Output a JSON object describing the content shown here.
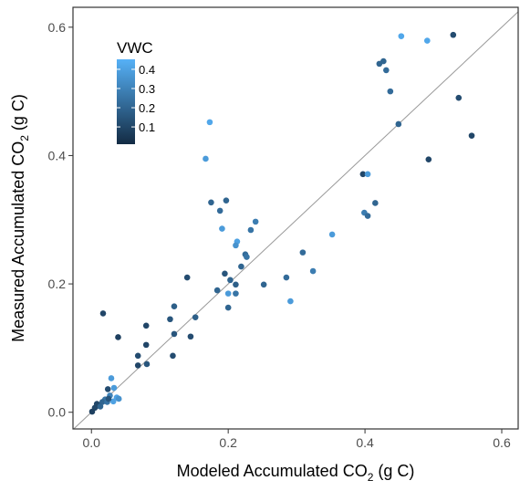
{
  "chart_data": {
    "type": "scatter",
    "xlabel": {
      "text": "Modeled Accumulated CO",
      "sub": "2",
      "suffix": " (g C)"
    },
    "ylabel": {
      "text": "Measured Accumulated  CO",
      "sub": "2",
      "suffix": " (g C)"
    },
    "xlim": [
      -0.027,
      0.624
    ],
    "ylim": [
      -0.026,
      0.631
    ],
    "xticks": [
      {
        "value": 0,
        "label": "0.0"
      },
      0.2,
      0.4,
      0.6
    ],
    "yticks": [
      {
        "value": 0,
        "label": "0.0"
      },
      0.2,
      0.4,
      0.6
    ],
    "colorbar": {
      "title": "VWC",
      "lim": [
        0.01,
        0.452
      ],
      "ticks": [
        0.1,
        0.2,
        0.3,
        0.4
      ],
      "colors": [
        "#132B43",
        "#56B1F7"
      ]
    },
    "series": [
      {
        "x": [
          0.529,
          0.453,
          0.491,
          0.421,
          0.427,
          0.431,
          0.437,
          0.537,
          0.449,
          0.556,
          0.493,
          0.173,
          0.167,
          0.397,
          0.404,
          0.415,
          0.399,
          0.404,
          0.175,
          0.197,
          0.188,
          0.191,
          0.24,
          0.233,
          0.225,
          0.227,
          0.213,
          0.211,
          0.219,
          0.14,
          0.195,
          0.203,
          0.184,
          0.211,
          0.211,
          0.2,
          0.2,
          0.252,
          0.285,
          0.309,
          0.324,
          0.291,
          0.352,
          0.121,
          0.115,
          0.152,
          0.121,
          0.145,
          0.119,
          0.08,
          0.08,
          0.068,
          0.068,
          0.081,
          0.017,
          0.039,
          0.024,
          0.029,
          0.033,
          0.037,
          0.032,
          0.04,
          0.027,
          0.02,
          0.016,
          0.011,
          0.005,
          0.001,
          0.008,
          0.013,
          0.023,
          0.025
        ],
        "values": [
          0.588,
          0.586,
          0.579,
          0.543,
          0.547,
          0.533,
          0.5,
          0.49,
          0.449,
          0.431,
          0.394,
          0.452,
          0.395,
          0.371,
          0.371,
          0.326,
          0.311,
          0.306,
          0.327,
          0.33,
          0.314,
          0.286,
          0.297,
          0.284,
          0.246,
          0.242,
          0.266,
          0.26,
          0.227,
          0.21,
          0.216,
          0.206,
          0.19,
          0.199,
          0.185,
          0.185,
          0.163,
          0.199,
          0.21,
          0.249,
          0.22,
          0.173,
          0.277,
          0.165,
          0.145,
          0.148,
          0.122,
          0.118,
          0.088,
          0.135,
          0.105,
          0.088,
          0.073,
          0.075,
          0.154,
          0.117,
          0.036,
          0.053,
          0.038,
          0.023,
          0.017,
          0.021,
          0.026,
          0.02,
          0.016,
          0.01,
          0.007,
          0.001,
          0.013,
          0.009,
          0.016,
          0.021
        ],
        "color_values": [
          0.12,
          0.42,
          0.42,
          0.2,
          0.2,
          0.22,
          0.22,
          0.12,
          0.2,
          0.1,
          0.1,
          0.42,
          0.38,
          0.1,
          0.38,
          0.2,
          0.28,
          0.22,
          0.2,
          0.2,
          0.22,
          0.38,
          0.28,
          0.25,
          0.22,
          0.25,
          0.4,
          0.35,
          0.2,
          0.12,
          0.15,
          0.2,
          0.2,
          0.18,
          0.25,
          0.38,
          0.2,
          0.2,
          0.22,
          0.22,
          0.28,
          0.38,
          0.38,
          0.18,
          0.15,
          0.18,
          0.15,
          0.12,
          0.12,
          0.1,
          0.1,
          0.12,
          0.1,
          0.15,
          0.1,
          0.08,
          0.12,
          0.38,
          0.38,
          0.4,
          0.4,
          0.35,
          0.3,
          0.25,
          0.2,
          0.15,
          0.1,
          0.08,
          0.1,
          0.2,
          0.25,
          0.15
        ]
      }
    ]
  }
}
